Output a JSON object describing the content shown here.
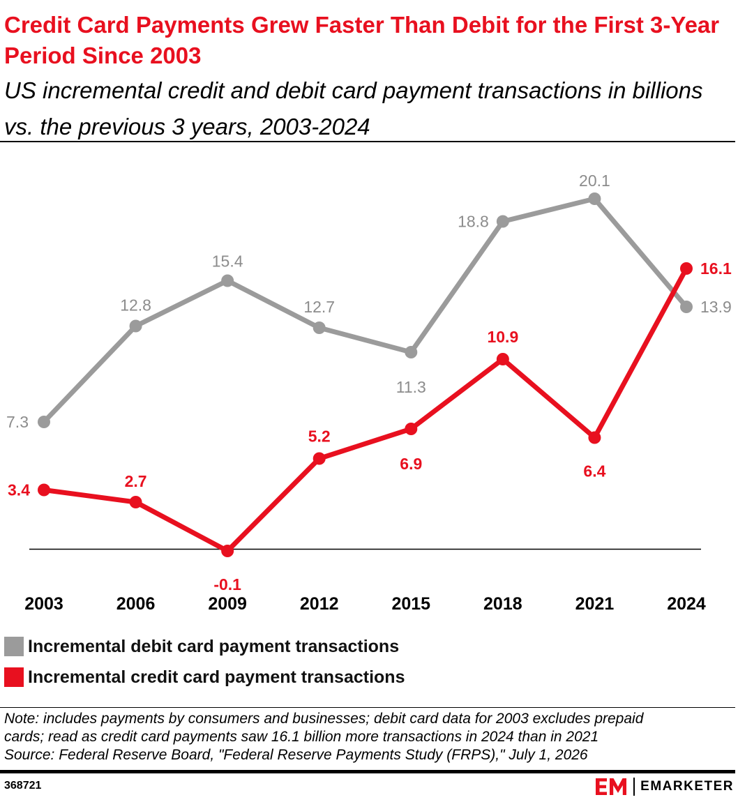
{
  "header": {
    "title": "Credit Card Payments Grew Faster Than Debit for the First 3-Year Period Since 2003",
    "subtitle": "US incremental credit and debit card payment transactions in billions vs. the previous 3 years, 2003-2024"
  },
  "chart_data": {
    "type": "line",
    "title": "Credit Card Payments Grew Faster Than Debit for the First 3-Year Period Since 2003",
    "subtitle": "US incremental credit and debit card payment transactions in billions vs. the previous 3 years, 2003-2024",
    "xlabel": "",
    "ylabel": "",
    "x": [
      "2003",
      "2006",
      "2009",
      "2012",
      "2015",
      "2018",
      "2021",
      "2024"
    ],
    "ylim": [
      -0.1,
      20.1
    ],
    "grid": false,
    "legend_position": "bottom",
    "series": [
      {
        "name": "Incremental debit card payment transactions",
        "color": "#9b9b9b",
        "values": [
          7.3,
          12.8,
          15.4,
          12.7,
          11.3,
          18.8,
          20.1,
          13.9
        ],
        "labels": [
          "7.3",
          "12.8",
          "15.4",
          "12.7",
          "11.3",
          "18.8",
          "20.1",
          "13.9"
        ]
      },
      {
        "name": "Incremental credit card payment transactions",
        "color": "#e8101f",
        "values": [
          3.4,
          2.7,
          -0.1,
          5.2,
          6.9,
          10.9,
          6.4,
          16.1
        ],
        "labels": [
          "3.4",
          "2.7",
          "-0.1",
          "5.2",
          "6.9",
          "10.9",
          "6.4",
          "16.1"
        ]
      }
    ]
  },
  "legend": {
    "items": [
      {
        "label": "Incremental debit card payment transactions",
        "color": "#9b9b9b"
      },
      {
        "label": "Incremental credit card payment transactions",
        "color": "#e8101f"
      }
    ]
  },
  "footer": {
    "note_line1": "Note: includes payments by consumers and businesses; debit card data for 2003 excludes prepaid",
    "note_line2": "cards; read as credit card payments saw 16.1 billion more transactions in 2024 than in 2021",
    "source": "Source: Federal Reserve Board, \"Federal Reserve Payments Study (FRPS),\" July 1, 2026",
    "chart_id": "368721",
    "brand_name": "EMARKETER",
    "brand_mark_color": "#e8101f"
  }
}
